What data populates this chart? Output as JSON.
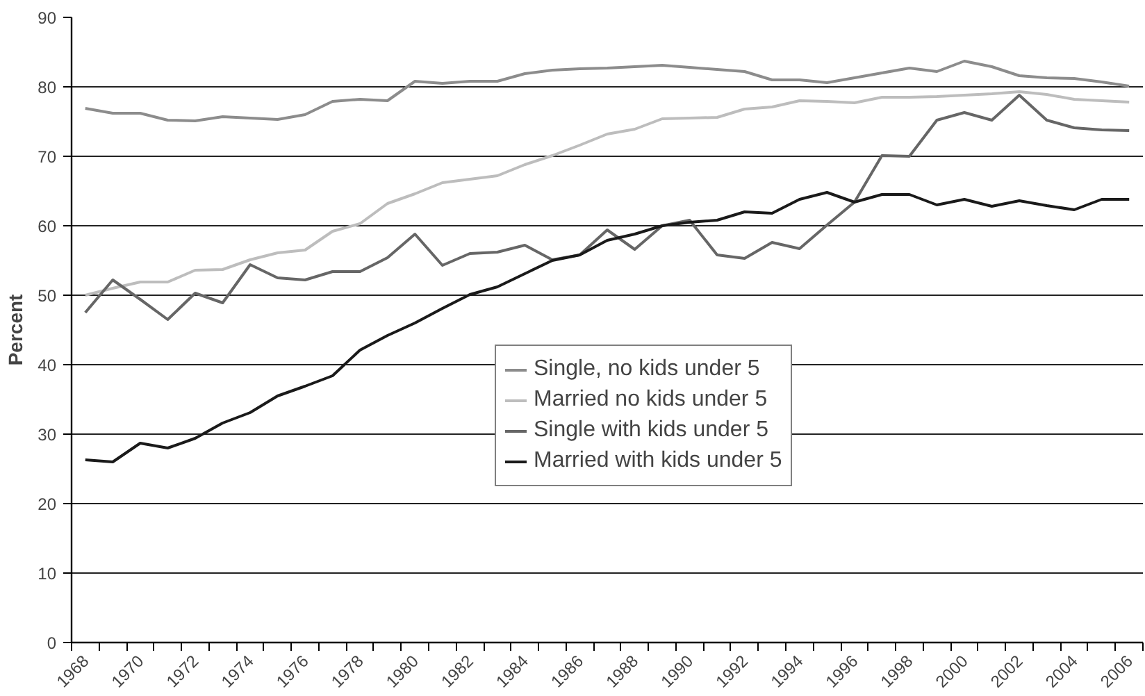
{
  "chart_data": {
    "type": "line",
    "ylabel": "Percent",
    "categories": [
      "1968",
      null,
      "1970",
      null,
      "1972",
      null,
      "1974",
      null,
      "1976",
      null,
      "1978",
      null,
      "1980",
      null,
      "1982",
      null,
      "1984",
      null,
      "1986",
      null,
      "1988",
      null,
      "1990",
      null,
      "1992",
      null,
      "1994",
      null,
      "1996",
      null,
      "1998",
      null,
      "2000",
      null,
      "2002",
      null,
      "2004",
      null,
      "2006"
    ],
    "ylim": [
      0,
      90
    ],
    "yticks": [
      0,
      10,
      20,
      30,
      40,
      50,
      60,
      70,
      80,
      90
    ],
    "grid": "y",
    "legend": "center",
    "line_style": "solid",
    "marker": "none",
    "series": [
      {
        "name": "Single, no kids under 5",
        "color": "#8c8c8c",
        "values": [
          76.9,
          76.2,
          76.2,
          75.2,
          75.1,
          75.7,
          75.5,
          75.3,
          76.0,
          77.9,
          78.2,
          78.0,
          80.8,
          80.5,
          80.8,
          80.8,
          81.9,
          82.4,
          82.6,
          82.7,
          82.9,
          83.1,
          82.8,
          82.5,
          82.2,
          81.0,
          81.0,
          80.6,
          81.3,
          82.0,
          82.7,
          82.2,
          83.7,
          82.9,
          81.6,
          81.3,
          81.2,
          80.7,
          80.1
        ]
      },
      {
        "name": "Married no kids under 5",
        "color": "#bdbdbd",
        "values": [
          50.0,
          51.0,
          51.9,
          51.9,
          53.6,
          53.7,
          55.1,
          56.1,
          56.5,
          59.2,
          60.3,
          63.2,
          64.6,
          66.2,
          66.7,
          67.2,
          68.8,
          70.1,
          71.6,
          73.2,
          73.9,
          75.4,
          75.5,
          75.6,
          76.8,
          77.1,
          78.0,
          77.9,
          77.7,
          78.5,
          78.5,
          78.6,
          78.8,
          79.0,
          79.3,
          78.9,
          78.2,
          78.0,
          77.8
        ]
      },
      {
        "name": "Single with kids under 5",
        "color": "#666666",
        "values": [
          47.5,
          52.2,
          49.4,
          46.5,
          50.3,
          48.9,
          54.4,
          52.5,
          52.2,
          53.4,
          53.4,
          55.4,
          58.8,
          54.3,
          56.0,
          56.2,
          57.2,
          55.1,
          55.8,
          59.4,
          56.6,
          60.0,
          60.8,
          55.8,
          55.3,
          57.6,
          56.7,
          60.1,
          63.4,
          70.1,
          70.0,
          75.2,
          76.3,
          75.2,
          78.8,
          75.2,
          74.1,
          73.8,
          73.7
        ]
      },
      {
        "name": "Married with kids under 5",
        "color": "#1a1a1a",
        "values": [
          26.3,
          26.0,
          28.7,
          28.0,
          29.4,
          31.6,
          33.1,
          35.5,
          36.9,
          38.4,
          42.1,
          44.2,
          46.0,
          48.1,
          50.1,
          51.2,
          53.1,
          55.0,
          55.8,
          57.9,
          58.8,
          60.0,
          60.5,
          60.8,
          62.0,
          61.8,
          63.8,
          64.8,
          63.4,
          64.5,
          64.5,
          63.0,
          63.8,
          62.8,
          63.6,
          62.9,
          62.3,
          63.8,
          63.8
        ]
      }
    ]
  }
}
